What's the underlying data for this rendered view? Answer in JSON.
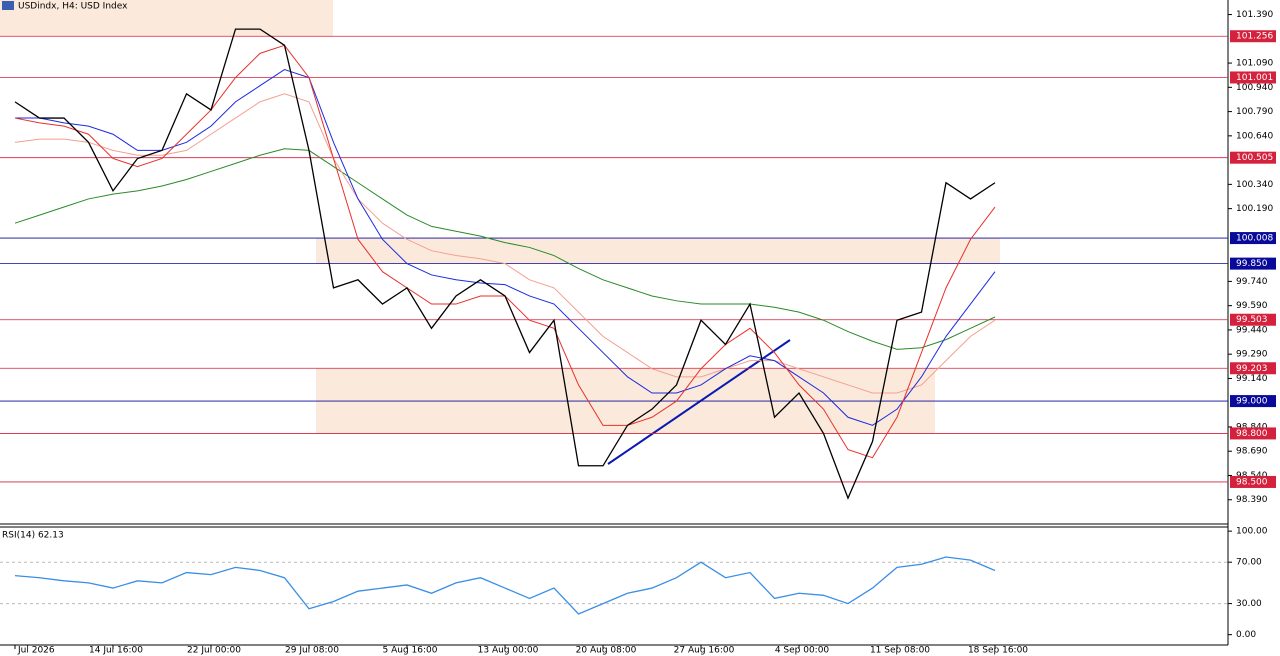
{
  "chart_data": [
    {
      "type": "line",
      "title": "USDindx, H4:  USD Index",
      "categories": [
        "Jul 2026",
        null,
        null,
        null,
        "14 Jul 16:00",
        null,
        null,
        null,
        "22 Jul 00:00",
        null,
        null,
        null,
        "29 Jul 08:00",
        null,
        null,
        null,
        "5 Aug 16:00",
        null,
        null,
        null,
        "13 Aug 00:00",
        null,
        null,
        null,
        "20 Aug 08:00",
        null,
        null,
        null,
        "27 Aug 16:00",
        null,
        null,
        null,
        "4 Sep 00:00",
        null,
        null,
        null,
        "11 Sep 08:00",
        null,
        null,
        null,
        "18 Sep 16:00"
      ],
      "series": [
        {
          "color": "#2a8a2a",
          "values": [
            100.1,
            100.15,
            100.2,
            100.25,
            100.28,
            100.3,
            100.33,
            100.37,
            100.42,
            100.47,
            100.52,
            100.56,
            100.55,
            100.45,
            100.35,
            100.25,
            100.15,
            100.08,
            100.05,
            100.02,
            99.98,
            99.95,
            99.9,
            99.82,
            99.75,
            99.7,
            99.65,
            99.62,
            99.6,
            99.6,
            99.6,
            99.58,
            99.55,
            99.5,
            99.43,
            99.37,
            99.32,
            99.33,
            99.38,
            99.45,
            99.52
          ]
        },
        {
          "color": "#f4a090",
          "values": [
            100.6,
            100.62,
            100.62,
            100.6,
            100.55,
            100.52,
            100.52,
            100.55,
            100.65,
            100.75,
            100.85,
            100.9,
            100.85,
            100.5,
            100.25,
            100.1,
            100.0,
            99.93,
            99.9,
            99.88,
            99.85,
            99.75,
            99.7,
            99.55,
            99.4,
            99.3,
            99.2,
            99.15,
            99.15,
            99.2,
            99.25,
            99.25,
            99.2,
            99.15,
            99.1,
            99.05,
            99.05,
            99.1,
            99.25,
            99.4,
            99.5
          ]
        },
        {
          "color": "#1a2ae0",
          "values": [
            100.75,
            100.75,
            100.72,
            100.7,
            100.65,
            100.55,
            100.55,
            100.6,
            100.7,
            100.85,
            100.95,
            101.05,
            101.0,
            100.6,
            100.25,
            100.0,
            99.85,
            99.78,
            99.75,
            99.73,
            99.72,
            99.65,
            99.6,
            99.45,
            99.3,
            99.15,
            99.05,
            99.05,
            99.1,
            99.2,
            99.28,
            99.25,
            99.15,
            99.05,
            98.9,
            98.85,
            98.95,
            99.15,
            99.4,
            99.6,
            99.8
          ]
        },
        {
          "color": "#e8302a",
          "values": [
            100.75,
            100.72,
            100.7,
            100.65,
            100.5,
            100.45,
            100.5,
            100.65,
            100.8,
            101.0,
            101.15,
            101.2,
            101.0,
            100.5,
            100.0,
            99.8,
            99.7,
            99.6,
            99.6,
            99.65,
            99.65,
            99.5,
            99.45,
            99.1,
            98.85,
            98.85,
            98.9,
            99.0,
            99.2,
            99.35,
            99.45,
            99.3,
            99.1,
            98.95,
            98.7,
            98.65,
            98.9,
            99.3,
            99.7,
            100.0,
            100.2
          ]
        },
        {
          "color": "#000000",
          "values": [
            100.85,
            100.75,
            100.75,
            100.6,
            100.3,
            100.5,
            100.55,
            100.9,
            100.8,
            101.3,
            101.3,
            101.2,
            100.55,
            99.7,
            99.75,
            99.6,
            99.7,
            99.45,
            99.65,
            99.75,
            99.65,
            99.3,
            99.5,
            98.6,
            98.6,
            98.85,
            98.95,
            99.1,
            99.5,
            99.35,
            99.6,
            98.9,
            99.05,
            98.8,
            98.4,
            98.75,
            99.5,
            99.55,
            100.35,
            100.25,
            100.35
          ]
        }
      ],
      "levels": [
        {
          "value": 101.256,
          "color": "#d4213d"
        },
        {
          "value": 101.001,
          "color": "#d4213d"
        },
        {
          "value": 100.505,
          "color": "#d4213d"
        },
        {
          "value": 100.008,
          "color": "#0a0a9a"
        },
        {
          "value": {
            "value": 99.85,
            "label": "99.850"
          },
          "color": "#0a0a9a"
        },
        {
          "value": 99.503,
          "color": "#d4213d"
        },
        {
          "value": 99.203,
          "color": "#d4213d"
        },
        {
          "value": {
            "value": 99,
            "label": "99.000"
          },
          "color": "#0a0a9a"
        },
        {
          "value": {
            "value": 98.8,
            "label": "98.800"
          },
          "color": "#d4213d"
        },
        {
          "value": {
            "value": 98.5,
            "label": "98.500"
          },
          "color": "#d4213d"
        }
      ],
      "ylim": [
        98.24,
        101.48
      ],
      "yticks": [
        {
          "value": 101.39,
          "label": "101.390"
        },
        {
          "value": 101.09,
          "label": "101.090"
        },
        {
          "value": 100.94,
          "label": "100.940"
        },
        {
          "value": 100.79,
          "label": "100.790"
        },
        {
          "value": 100.64,
          "label": "100.640"
        },
        {
          "value": 100.34,
          "label": "100.340"
        },
        {
          "value": 100.19,
          "label": "100.190"
        },
        {
          "value": 99.74,
          "label": "99.740"
        },
        {
          "value": 99.59,
          "label": "99.590"
        },
        {
          "value": 99.44,
          "label": "99.440"
        },
        {
          "value": 99.29,
          "label": "99.290"
        },
        {
          "value": 99.14,
          "label": "99.140"
        },
        {
          "value": 98.84,
          "label": "98.840"
        },
        {
          "value": 98.69,
          "label": "98.690"
        },
        {
          "value": 98.54,
          "label": "98.540"
        },
        {
          "value": 98.39,
          "label": "98.390"
        }
      ]
    },
    {
      "type": "line",
      "title": "RSI(14) 62.13",
      "series": [
        {
          "color": "#3a8ee6",
          "values": [
            57,
            55,
            52,
            50,
            45,
            52,
            50,
            60,
            58,
            65,
            62,
            55,
            25,
            32,
            42,
            45,
            48,
            40,
            50,
            55,
            45,
            35,
            45,
            20,
            30,
            40,
            45,
            55,
            70,
            55,
            60,
            35,
            40,
            38,
            30,
            45,
            65,
            68,
            75,
            72,
            62
          ]
        }
      ],
      "ylim": [
        -10,
        104
      ],
      "yticks": [
        {
          "value": 100,
          "label": "100.00"
        },
        {
          "value": 70,
          "label": "70.00"
        },
        {
          "value": 30,
          "label": "30.00"
        },
        {
          "value": 0,
          "label": "0.00"
        }
      ],
      "grid": [
        70,
        30
      ]
    }
  ]
}
